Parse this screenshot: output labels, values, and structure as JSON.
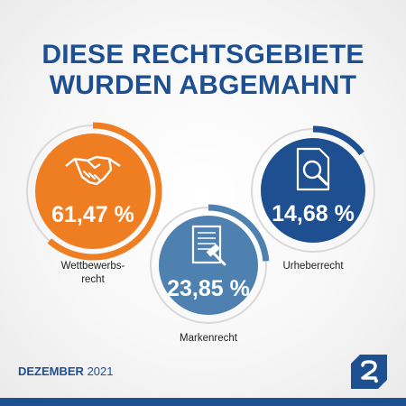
{
  "title": {
    "line1": "DIESE RECHTSGEBIETE",
    "line2": "WURDEN ABGEMAHNT"
  },
  "footer": {
    "month": "DEZEMBER",
    "year": "2021"
  },
  "colors": {
    "brand_blue": "#1d4f91",
    "orange": "#ef7d22",
    "steel_blue": "#4f81b0",
    "navy": "#1d4f91",
    "track_grey": "#d9d9d9"
  },
  "icons": {
    "wettbewerbsrecht": "handshake-icon",
    "markenrecht": "document-gavel-icon",
    "urheberrecht": "document-magnifier-icon",
    "logo": "brand-logo-icon"
  },
  "chart_data": {
    "type": "pie",
    "title": "DIESE RECHTSGEBIETE WURDEN ABGEMAHNT",
    "categories": [
      "Wettbewerbsrecht",
      "Markenrecht",
      "Urheberrecht"
    ],
    "values": [
      61.47,
      23.85,
      14.68
    ],
    "unit": "%",
    "value_labels": [
      "61,47 %",
      "23,85 %",
      "14,68 %"
    ],
    "label_lines": [
      [
        "Wettbewerbs-",
        "recht"
      ],
      [
        "Markenrecht"
      ],
      [
        "Urheberrecht"
      ]
    ],
    "colors": [
      "#ef7d22",
      "#4f81b0",
      "#1d4f91"
    ]
  }
}
